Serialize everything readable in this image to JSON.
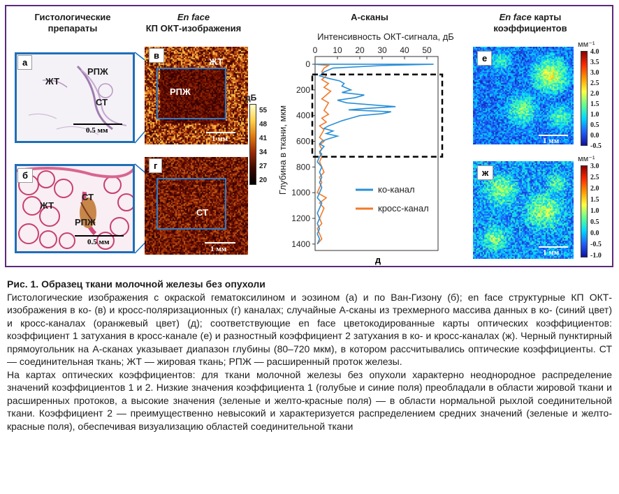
{
  "headers": {
    "histology": "Гистологические препараты",
    "enface_prefix": "En face",
    "enface_oct": "КП ОКТ-изображения",
    "ascans": "А-сканы",
    "maps_prefix": "En face",
    "maps_suffix": "карты коэффициентов"
  },
  "panels": {
    "a": {
      "label": "а",
      "tissue": [
        "ЖТ",
        "РПЖ",
        "СТ"
      ],
      "scale": "0.5 мм"
    },
    "b": {
      "label": "б",
      "tissue": [
        "ЖТ",
        "СТ",
        "РПЖ"
      ],
      "scale": "0.5 мм"
    },
    "v": {
      "label": "в",
      "tissue": [
        "ЖТ",
        "РПЖ"
      ],
      "scale": "1 мм"
    },
    "g": {
      "label": "г",
      "tissue": [
        "СТ"
      ],
      "scale": "1 мм"
    },
    "e": {
      "label": "е",
      "scale": "1 мм",
      "unit": "мм⁻¹"
    },
    "zh": {
      "label": "ж",
      "scale": "1 мм",
      "unit": "мм⁻¹"
    },
    "d": {
      "label": "д"
    }
  },
  "oct_colorbar": {
    "unit": "дБ",
    "ticks": [
      "55",
      "48",
      "41",
      "34",
      "27",
      "20"
    ]
  },
  "map_e_colorbar": {
    "ticks": [
      "4.0",
      "3.5",
      "3.0",
      "2.5",
      "2.0",
      "1.5",
      "1.0",
      "0.5",
      "0.0",
      "-0.5"
    ]
  },
  "map_zh_colorbar": {
    "ticks": [
      "3.0",
      "2.5",
      "2.0",
      "1.5",
      "1.0",
      "0.5",
      "0.0",
      "-0.5",
      "-1.0"
    ]
  },
  "chart_data": {
    "type": "line",
    "title": "А-сканы",
    "xlabel": "Интенсивность ОКТ-сигнала, дБ",
    "ylabel": "Глубина в ткани, мкм",
    "xlim": [
      0,
      55
    ],
    "ylim": [
      1450,
      -60
    ],
    "x_ticks": [
      "0",
      "10",
      "20",
      "30",
      "40",
      "50"
    ],
    "y_ticks": [
      "0",
      "200",
      "400",
      "600",
      "800",
      "1000",
      "1200",
      "1400"
    ],
    "legend_position": "center-right",
    "dashed_rect": {
      "depth_from": 80,
      "depth_to": 720
    },
    "series": [
      {
        "name": "ко-канал",
        "color": "#2b8fd6",
        "points": [
          [
            0,
            0
          ],
          [
            53,
            0
          ],
          [
            30,
            10
          ],
          [
            8,
            30
          ],
          [
            4,
            60
          ],
          [
            2,
            90
          ],
          [
            6,
            110
          ],
          [
            11,
            130
          ],
          [
            13,
            150
          ],
          [
            12,
            170
          ],
          [
            14,
            185
          ],
          [
            16,
            200
          ],
          [
            12,
            220
          ],
          [
            22,
            240
          ],
          [
            18,
            260
          ],
          [
            10,
            280
          ],
          [
            14,
            300
          ],
          [
            28,
            320
          ],
          [
            36,
            330
          ],
          [
            22,
            345
          ],
          [
            15,
            355
          ],
          [
            34,
            370
          ],
          [
            30,
            385
          ],
          [
            20,
            400
          ],
          [
            16,
            420
          ],
          [
            12,
            440
          ],
          [
            9,
            460
          ],
          [
            6,
            480
          ],
          [
            4,
            500
          ],
          [
            8,
            520
          ],
          [
            5,
            540
          ],
          [
            10,
            560
          ],
          [
            6,
            580
          ],
          [
            3,
            600
          ],
          [
            2,
            620
          ],
          [
            4,
            640
          ],
          [
            3,
            660
          ],
          [
            2,
            680
          ],
          [
            3,
            700
          ],
          [
            2,
            720
          ],
          [
            1,
            760
          ],
          [
            3,
            800
          ],
          [
            2,
            840
          ],
          [
            3,
            880
          ],
          [
            2,
            920
          ],
          [
            3,
            960
          ],
          [
            2,
            1000
          ],
          [
            1,
            1040
          ],
          [
            3,
            1080
          ],
          [
            2,
            1120
          ],
          [
            1,
            1160
          ],
          [
            2,
            1200
          ],
          [
            1,
            1240
          ],
          [
            2,
            1280
          ],
          [
            1,
            1320
          ],
          [
            2,
            1360
          ],
          [
            1,
            1400
          ]
        ]
      },
      {
        "name": "кросс-канал",
        "color": "#f07a2a",
        "points": [
          [
            0,
            0
          ],
          [
            6,
            10
          ],
          [
            4,
            30
          ],
          [
            3,
            60
          ],
          [
            5,
            90
          ],
          [
            3,
            120
          ],
          [
            6,
            150
          ],
          [
            4,
            180
          ],
          [
            7,
            210
          ],
          [
            5,
            240
          ],
          [
            3,
            270
          ],
          [
            6,
            300
          ],
          [
            5,
            330
          ],
          [
            4,
            360
          ],
          [
            6,
            390
          ],
          [
            3,
            420
          ],
          [
            5,
            450
          ],
          [
            2,
            480
          ],
          [
            4,
            510
          ],
          [
            3,
            540
          ],
          [
            2,
            570
          ],
          [
            4,
            600
          ],
          [
            2,
            630
          ],
          [
            3,
            660
          ],
          [
            2,
            690
          ],
          [
            3,
            720
          ],
          [
            2,
            760
          ],
          [
            3,
            800
          ],
          [
            4,
            840
          ],
          [
            2,
            880
          ],
          [
            3,
            920
          ],
          [
            2,
            960
          ],
          [
            1,
            1000
          ],
          [
            5,
            1040
          ],
          [
            2,
            1080
          ],
          [
            4,
            1120
          ],
          [
            3,
            1160
          ],
          [
            2,
            1200
          ],
          [
            3,
            1240
          ],
          [
            1,
            1280
          ],
          [
            2,
            1320
          ],
          [
            3,
            1360
          ],
          [
            1,
            1400
          ]
        ]
      }
    ]
  },
  "caption": {
    "title": "Рис. 1. Образец ткани молочной железы без опухоли",
    "p1": "Гистологические изображения с окраской гематоксилином и эозином (а) и по Ван-Гизону (б); en face структурные КП ОКТ-изображения в ко- (в) и кросс-поляризационных (г) каналах; случайные А-сканы из трехмерного массива данных в ко- (синий цвет) и кросс-каналах (оранжевый цвет) (д); соответствующие en face цветокодированные карты оптических коэффициентов: коэффициент 1 затухания в кросс-канале (е) и разностный коэффициент 2 затухания в ко- и кросс-каналах (ж). Черный пунктирный прямоугольник на А-сканах указывает диапазон глубины (80–720 мкм), в котором рассчитывались оптические коэффициенты. СТ — соединительная ткань; ЖТ — жировая ткань; РПЖ — расширенный проток железы.",
    "p2": "На картах оптических коэффициентов: для ткани молочной железы без опухоли характерно неоднородное распределение значений коэффициентов 1 и 2. Низкие значения коэффициента 1 (голубые и синие поля) преобладали в области жировой ткани и расширенных протоков, а высокие значения (зеленые и желто-красные поля) — в области нормальной рыхлой соединительной ткани. Коэффициент 2 — преимущественно невысокий и характеризуется распределением средних значений (зеленые и желто-красные поля), обеспечивая визуализацию областей соединительной ткани"
  }
}
